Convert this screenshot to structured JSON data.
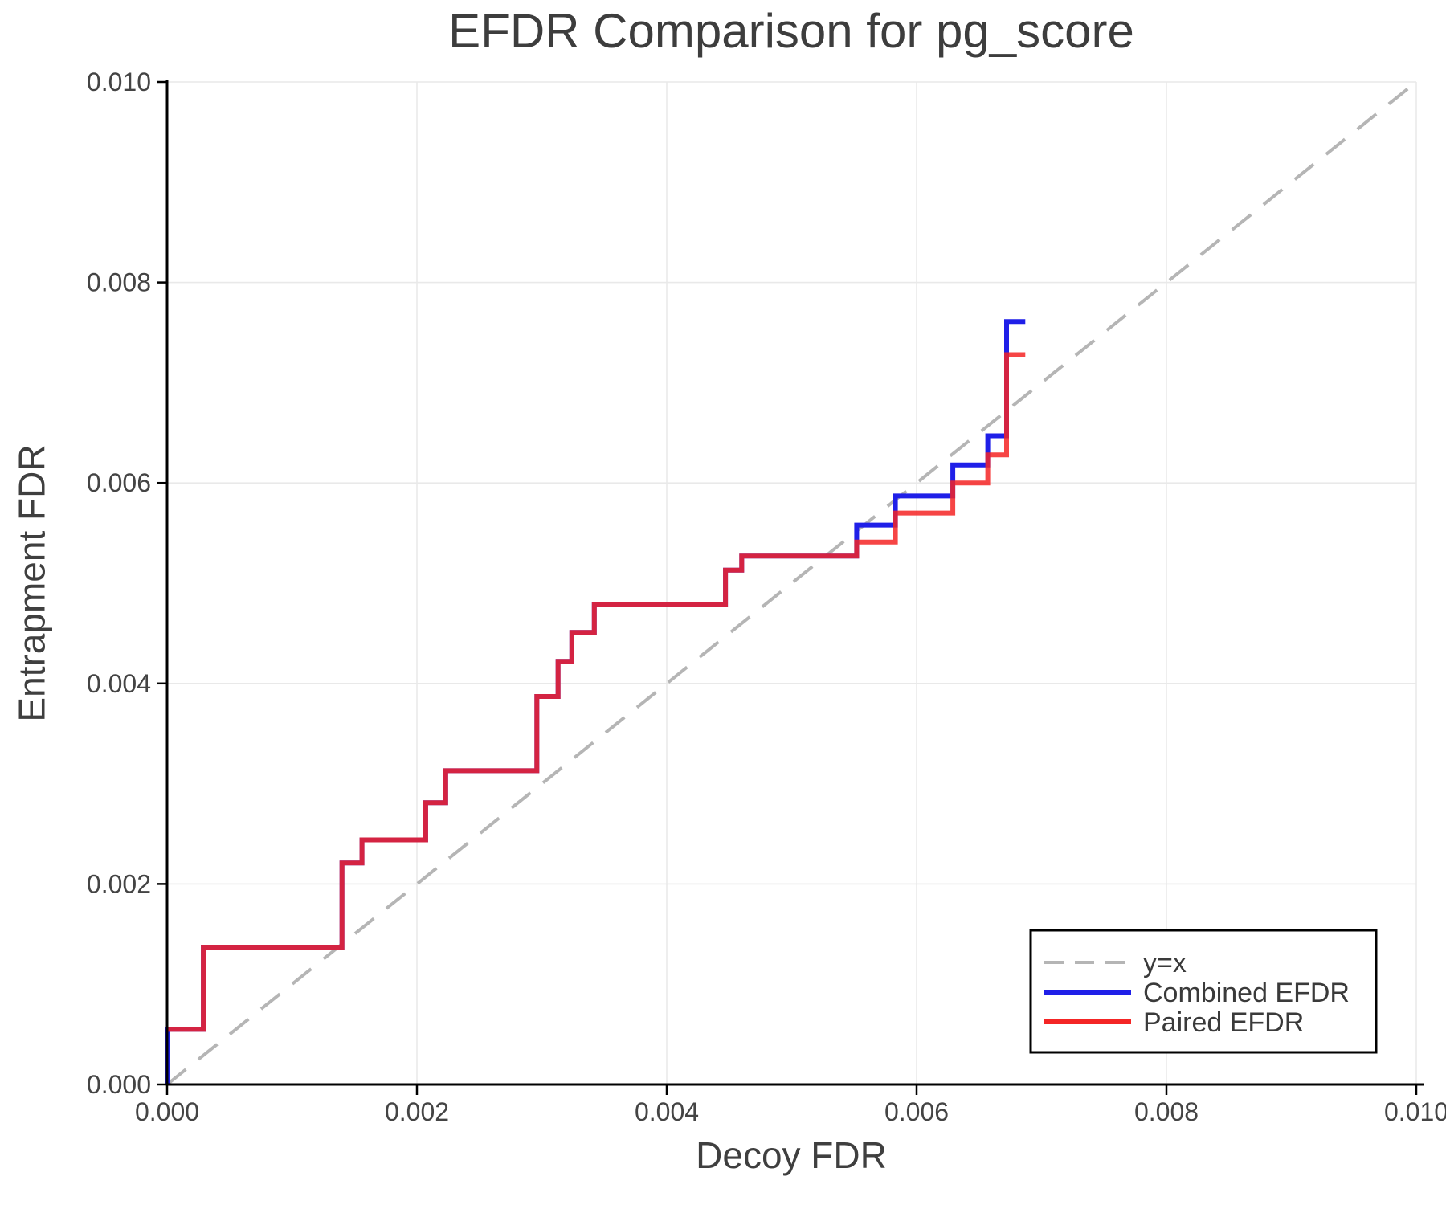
{
  "chart_data": {
    "type": "line",
    "title": "EFDR Comparison for pg_score",
    "xlabel": "Decoy FDR",
    "ylabel": "Entrapment FDR",
    "xlim": [
      0,
      0.01
    ],
    "ylim": [
      0,
      0.01
    ],
    "grid": true,
    "legend_position": "lower right",
    "x_ticks": [
      {
        "value": 0.0,
        "label": "0.000"
      },
      {
        "value": 0.002,
        "label": "0.002"
      },
      {
        "value": 0.004,
        "label": "0.004"
      },
      {
        "value": 0.006,
        "label": "0.006"
      },
      {
        "value": 0.008,
        "label": "0.008"
      },
      {
        "value": 0.01,
        "label": "0.010"
      }
    ],
    "y_ticks": [
      {
        "value": 0.0,
        "label": "0.000"
      },
      {
        "value": 0.002,
        "label": "0.002"
      },
      {
        "value": 0.004,
        "label": "0.004"
      },
      {
        "value": 0.006,
        "label": "0.006"
      },
      {
        "value": 0.008,
        "label": "0.008"
      },
      {
        "value": 0.01,
        "label": "0.010"
      }
    ],
    "series": [
      {
        "name": "y=x",
        "type": "identity-line",
        "style": "dashed",
        "color": "#b5b5b5",
        "width": 4,
        "points": [
          [
            0,
            0
          ],
          [
            0.01,
            0.01
          ]
        ]
      },
      {
        "name": "Combined EFDR",
        "type": "step-post",
        "style": "solid",
        "color": "#1f1fe8",
        "opacity": 1,
        "width": 6,
        "points": [
          [
            0.0,
            0.0
          ],
          [
            0.0,
            0.00055
          ],
          [
            0.00029,
            0.00137
          ],
          [
            0.0014,
            0.00221
          ],
          [
            0.00156,
            0.00244
          ],
          [
            0.00207,
            0.00281
          ],
          [
            0.00223,
            0.00313
          ],
          [
            0.00296,
            0.00387
          ],
          [
            0.00313,
            0.00422
          ],
          [
            0.00324,
            0.00451
          ],
          [
            0.00342,
            0.00479
          ],
          [
            0.00447,
            0.00513
          ],
          [
            0.0046,
            0.00527
          ],
          [
            0.00552,
            0.00558
          ],
          [
            0.00583,
            0.00587
          ],
          [
            0.00629,
            0.00618
          ],
          [
            0.00657,
            0.00647
          ],
          [
            0.00672,
            0.00761
          ]
        ],
        "x_end": 0.00687
      },
      {
        "name": "Paired EFDR",
        "type": "step-post",
        "style": "solid",
        "color": "#f42525",
        "opacity": 0.85,
        "width": 6,
        "points": [
          [
            0.0,
            0.00055
          ],
          [
            0.00029,
            0.00137
          ],
          [
            0.0014,
            0.00221
          ],
          [
            0.00156,
            0.00244
          ],
          [
            0.00207,
            0.00281
          ],
          [
            0.00223,
            0.00313
          ],
          [
            0.00296,
            0.00387
          ],
          [
            0.00313,
            0.00422
          ],
          [
            0.00324,
            0.00451
          ],
          [
            0.00342,
            0.00479
          ],
          [
            0.00447,
            0.00513
          ],
          [
            0.0046,
            0.00527
          ],
          [
            0.00552,
            0.00541
          ],
          [
            0.00583,
            0.0057
          ],
          [
            0.00629,
            0.006
          ],
          [
            0.00657,
            0.00628
          ],
          [
            0.00672,
            0.00728
          ]
        ],
        "x_end": 0.00687
      }
    ],
    "legend": [
      {
        "label": "y=x",
        "color": "#b5b5b5",
        "dash": true
      },
      {
        "label": "Combined EFDR",
        "color": "#1f1fe8",
        "dash": false
      },
      {
        "label": "Paired EFDR",
        "color": "#f42525",
        "dash": false
      }
    ],
    "colors": {
      "axis_text": "#3f3f3f",
      "tick_text": "#444444",
      "grid": "#e9e9e9",
      "spine": "#000000",
      "legend_border": "#000000",
      "legend_bg": "#ffffff"
    }
  }
}
